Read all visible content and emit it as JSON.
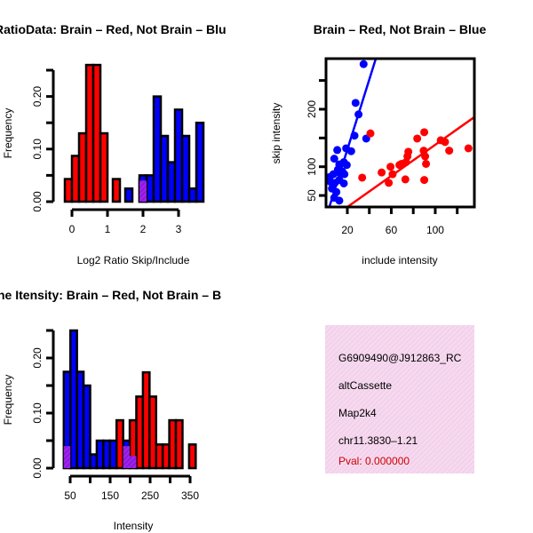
{
  "colors": {
    "brain": "#ff0000",
    "not_brain": "#0000ff",
    "overlap": "#a020f0",
    "info_bg": "#f8d8f0",
    "pval": "#cc0000"
  },
  "chart_data": [
    {
      "type": "bar",
      "title": "RatioData: Brain – Red, Not Brain – Blu",
      "xlabel": "Log2 Ratio Skip/Include",
      "ylabel": "Frequency",
      "xticks": [
        0,
        1,
        2,
        3
      ],
      "xtick_labels": [
        "0",
        "1",
        "2",
        "3"
      ],
      "yticks": [
        0,
        0.05,
        0.1,
        0.15,
        0.2,
        0.25
      ],
      "ytick_labels": [
        "0.00",
        "0.10",
        "0.20"
      ],
      "ytick_label_values": [
        0,
        0.1,
        0.2
      ],
      "bin_width": 0.2,
      "series": [
        {
          "name": "Brain",
          "color": "red",
          "bins": [
            [
              -0.2,
              0.043
            ],
            [
              0,
              0.087
            ],
            [
              0.2,
              0.13
            ],
            [
              0.4,
              0.26
            ],
            [
              0.6,
              0.26
            ],
            [
              0.8,
              0.13
            ],
            [
              1.15,
              0.043
            ],
            [
              1.9,
              0.043
            ]
          ]
        },
        {
          "name": "Not Brain",
          "color": "blue",
          "bins": [
            [
              1.5,
              0.025
            ],
            [
              1.9,
              0.05
            ],
            [
              2.1,
              0.05
            ],
            [
              2.3,
              0.2
            ],
            [
              2.5,
              0.125
            ],
            [
              2.7,
              0.075
            ],
            [
              2.9,
              0.175
            ],
            [
              3.1,
              0.125
            ],
            [
              3.3,
              0.025
            ],
            [
              3.5,
              0.15
            ]
          ]
        },
        {
          "name": "Overlap",
          "color": "purple",
          "bins": [
            [
              1.9,
              0.04
            ]
          ]
        }
      ]
    },
    {
      "type": "scatter",
      "title": "Brain – Red, Not Brain – Blue",
      "xlabel": "include intensity",
      "ylabel": "skip intensity",
      "xlim": [
        0.6,
        135.6
      ],
      "ylim": [
        30,
        288
      ],
      "xticks": [
        20,
        40,
        60,
        80,
        100,
        120
      ],
      "xtick_labels": [
        "20",
        "60",
        "100"
      ],
      "xtick_label_values": [
        20,
        60,
        100
      ],
      "yticks": [
        50,
        100,
        150,
        200,
        250
      ],
      "ytick_labels": [
        "50",
        "100",
        "200"
      ],
      "ytick_label_values": [
        50,
        100,
        200
      ],
      "series": [
        {
          "name": "Not Brain",
          "color": "blue",
          "fit": {
            "slope": 6.1,
            "intercept": 7.8
          },
          "points": [
            [
              34.8,
              278.5
            ],
            [
              27.5,
              211
            ],
            [
              30.2,
              191
            ],
            [
              26.5,
              154
            ],
            [
              37.2,
              149
            ],
            [
              10.8,
              129
            ],
            [
              18.9,
              132
            ],
            [
              23.5,
              127
            ],
            [
              8.1,
              114
            ],
            [
              12.7,
              104
            ],
            [
              16.8,
              108
            ],
            [
              19.5,
              103
            ],
            [
              11.4,
              95
            ],
            [
              15.4,
              92
            ],
            [
              17.3,
              87
            ],
            [
              7.3,
              87
            ],
            [
              4.6,
              74
            ],
            [
              8.7,
              72
            ],
            [
              12.7,
              77
            ],
            [
              16.8,
              71
            ],
            [
              6.0,
              62
            ],
            [
              10.0,
              56
            ],
            [
              8.1,
              46
            ],
            [
              12.7,
              41
            ],
            [
              3.8,
              82
            ],
            [
              14.1,
              87
            ]
          ]
        },
        {
          "name": "Brain",
          "color": "red",
          "fit": {
            "slope": 1.353,
            "intercept": 2.9
          },
          "points": [
            [
              41,
              158
            ],
            [
              33.5,
              81
            ],
            [
              51.2,
              90
            ],
            [
              57.7,
              72
            ],
            [
              59.3,
              100
            ],
            [
              61.2,
              87
            ],
            [
              67.4,
              103
            ],
            [
              72.8,
              78
            ],
            [
              73.3,
              108
            ],
            [
              75.5,
              126
            ],
            [
              74.7,
              118
            ],
            [
              83.6,
              149
            ],
            [
              90,
              160
            ],
            [
              89.5,
              128
            ],
            [
              90.8,
              118
            ],
            [
              91.6,
              105
            ],
            [
              90,
              77
            ],
            [
              105,
              146
            ],
            [
              108.9,
              143
            ],
            [
              112.7,
              128
            ],
            [
              130.2,
              132
            ],
            [
              69.3,
              105
            ]
          ]
        }
      ]
    },
    {
      "type": "bar",
      "title": "ne Itensity: Brain – Red, Not Brain – B",
      "xlabel": "Intensity",
      "ylabel": "Frequency",
      "xticks": [
        50,
        100,
        150,
        200,
        250,
        300,
        350
      ],
      "xtick_labels": [
        "50",
        "150",
        "250",
        "350"
      ],
      "xtick_label_values": [
        50,
        150,
        250,
        350
      ],
      "yticks": [
        0,
        0.05,
        0.1,
        0.15,
        0.2,
        0.25
      ],
      "ytick_labels": [
        "0.00",
        "0.10",
        "0.20"
      ],
      "ytick_label_values": [
        0,
        0.1,
        0.2
      ],
      "bin_width": 16.5,
      "series": [
        {
          "name": "Not Brain",
          "color": "blue",
          "bins": [
            [
              34,
              0.175
            ],
            [
              50.5,
              0.25
            ],
            [
              67,
              0.175
            ],
            [
              83.5,
              0.15
            ],
            [
              100,
              0.025
            ],
            [
              116.5,
              0.05
            ],
            [
              133,
              0.05
            ],
            [
              149.5,
              0.05
            ],
            [
              182.5,
              0.05
            ]
          ]
        },
        {
          "name": "Brain",
          "color": "red",
          "bins": [
            [
              166,
              0.087
            ],
            [
              199,
              0.087
            ],
            [
              215.5,
              0.13
            ],
            [
              232,
              0.174
            ],
            [
              248.5,
              0.13
            ],
            [
              265,
              0.043
            ],
            [
              281.5,
              0.043
            ],
            [
              298,
              0.087
            ],
            [
              314.5,
              0.087
            ],
            [
              347.5,
              0.043
            ]
          ]
        },
        {
          "name": "Overlap",
          "color": "purple",
          "bins": [
            [
              34,
              0.04
            ],
            [
              182.5,
              0.04
            ],
            [
              199,
              0.022
            ]
          ]
        }
      ]
    }
  ],
  "info": {
    "id": "G6909490@J912863_RC",
    "event_type": "altCassette",
    "gene": "Map2k4",
    "location": "chr11.3830–1.21",
    "pval": "Pval: 0.000000"
  }
}
